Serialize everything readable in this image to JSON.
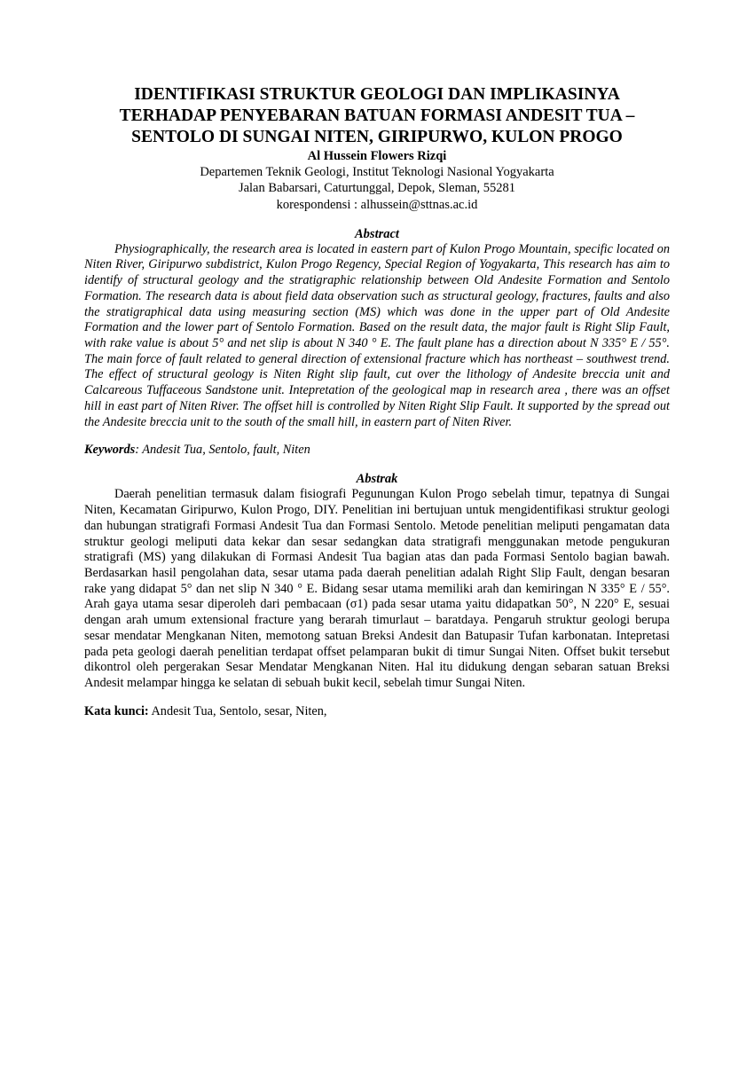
{
  "title": "IDENTIFIKASI STRUKTUR GEOLOGI DAN IMPLIKASINYA TERHADAP PENYEBARAN BATUAN FORMASI ANDESIT TUA – SENTOLO DI SUNGAI NITEN, GIRIPURWO, KULON PROGO",
  "author": "Al Hussein Flowers Rizqi",
  "affiliation_line1": "Departemen Teknik Geologi, Institut Teknologi Nasional Yogyakarta",
  "affiliation_line2": "Jalan Babarsari, Caturtunggal, Depok, Sleman, 55281",
  "correspondence": "korespondensi : alhussein@sttnas.ac.id",
  "abstract_heading_en": "Abstract",
  "abstract_en": "Physiographically, the research area is located in eastern part of Kulon Progo Mountain, specific located on Niten River, Giripurwo subdistrict, Kulon Progo Regency, Special Region of Yogyakarta,  This research has aim to identify of structural geology and the stratigraphic relationship between Old Andesite Formation and Sentolo Formation. The research data is about field data observation such as structural geology, fractures, faults and also the stratigraphical data using measuring section (MS) which was done in the upper part of Old Andesite Formation and the lower part of Sentolo Formation. Based on the result data, the major fault is Right Slip Fault, with rake value is about 5° and net slip is about N 340 ° E. The fault plane has a direction about N 335° E / 55°. The main force of fault related to general direction of extensional fracture which has northeast – southwest trend. The effect of structural geology is Niten Right slip fault, cut over the lithology of Andesite breccia unit and Calcareous Tuffaceous Sandstone unit. Intepretation of the geological map in research area , there was an offset hill in east part of Niten River. The offset hill is controlled by Niten Right Slip Fault. It supported by the spread out the Andesite breccia unit to the south of the small hill, in eastern part of Niten River.",
  "keywords_label_en": "Keywords",
  "keywords_en": ": Andesit Tua, Sentolo, fault, Niten",
  "abstract_heading_id": "Abstrak",
  "abstract_id": "Daerah penelitian termasuk dalam fisiografi Pegunungan Kulon Progo sebelah timur, tepatnya di Sungai Niten, Kecamatan Giripurwo, Kulon Progo, DIY. Penelitian ini bertujuan untuk mengidentifikasi struktur geologi dan hubungan stratigrafi Formasi Andesit Tua dan Formasi Sentolo. Metode penelitian meliputi pengamatan data struktur geologi meliputi data kekar dan sesar sedangkan data stratigrafi menggunakan metode pengukuran stratigrafi (MS) yang dilakukan di Formasi Andesit Tua bagian atas dan pada Formasi Sentolo bagian bawah. Berdasarkan hasil pengolahan data, sesar utama pada daerah penelitian adalah Right Slip Fault, dengan besaran rake yang didapat 5° dan net slip N 340 ° E. Bidang sesar utama memiliki arah dan kemiringan N 335° E / 55°. Arah gaya utama sesar diperoleh dari pembacaan (σ1) pada sesar utama yaitu didapatkan 50°, N 220° E, sesuai dengan arah umum extensional fracture yang berarah timurlaut – baratdaya. Pengaruh struktur geologi berupa sesar mendatar Mengkanan Niten, memotong satuan Breksi Andesit dan Batupasir Tufan karbonatan. Intepretasi pada peta geologi daerah penelitian terdapat offset pelamparan bukit di timur Sungai Niten. Offset bukit tersebut dikontrol oleh pergerakan Sesar Mendatar Mengkanan Niten. Hal itu didukung dengan sebaran satuan Breksi Andesit melampar hingga ke selatan di sebuah bukit kecil, sebelah timur Sungai Niten.",
  "keywords_label_id": "Kata kunci:",
  "keywords_id": " Andesit Tua, Sentolo, sesar, Niten,"
}
